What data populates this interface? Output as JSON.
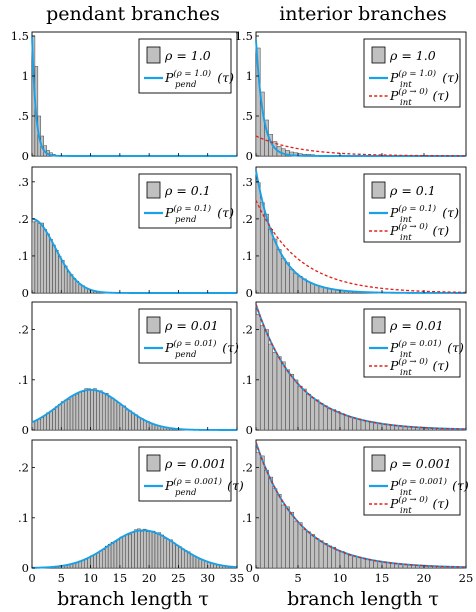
{
  "figure": {
    "col_titles": [
      "pendant branches",
      "interior branches"
    ]
  },
  "colors": {
    "histogram_fill": "#c0c0c0",
    "histogram_edge": "#333333",
    "fitted_curve": "#1aa0e6",
    "limit_curve": "#e0201b"
  },
  "chart_data": [
    {
      "type": "bar",
      "panel": "pendant",
      "rho": "ρ = 1.0",
      "xlim": [
        0,
        35
      ],
      "ylim": [
        0,
        1.55
      ],
      "yticks": [
        0,
        0.5,
        1.0,
        1.5
      ],
      "xticks": [],
      "xlabel": "",
      "legend": {
        "placement": "top-right",
        "hist_label": "ρ = 1.0",
        "curve_label": "P_pend^(ρ = 1.0)(τ)"
      },
      "bin_width": 0.5,
      "bin_values": [
        1.5,
        1.12,
        0.5,
        0.25,
        0.13,
        0.07,
        0.04,
        0.02,
        0.01,
        0.006,
        0.003,
        0.002,
        0.001,
        0.001
      ],
      "curve": {
        "name": "P_pend^(ρ = 1.0)(τ)",
        "family": "exp",
        "a": 1.5,
        "k": 1.5
      }
    },
    {
      "type": "bar",
      "panel": "interior",
      "rho": "ρ = 1.0",
      "xlim": [
        0,
        25
      ],
      "ylim": [
        0,
        1.55
      ],
      "yticks": [
        0,
        0.5,
        1.0,
        1.5
      ],
      "xticks": [],
      "xlabel": "",
      "legend": {
        "placement": "top-right",
        "hist_label": "ρ = 1.0",
        "curve_label": "P_int^(ρ = 1.0)(τ)",
        "limit_label": "P_int^(ρ → 0)(τ)"
      },
      "bin_width": 0.5,
      "bin_values": [
        1.35,
        0.8,
        0.45,
        0.27,
        0.18,
        0.12,
        0.09,
        0.07,
        0.05,
        0.04,
        0.03,
        0.02,
        0.02,
        0.015,
        0.01,
        0.008
      ],
      "curve": {
        "name": "P_int^(ρ = 1.0)(τ)",
        "family": "exp",
        "a": 1.45,
        "k": 1.2
      },
      "limit_curve": {
        "name": "P_int^(ρ → 0)(τ)",
        "family": "exp",
        "a": 0.25,
        "k": 0.2
      }
    },
    {
      "type": "bar",
      "panel": "pendant",
      "rho": "ρ = 0.1",
      "xlim": [
        0,
        35
      ],
      "ylim": [
        0,
        0.34
      ],
      "yticks": [
        0,
        0.1,
        0.2,
        0.3
      ],
      "xticks": [],
      "xlabel": "",
      "legend": {
        "placement": "top-right",
        "hist_label": "ρ = 0.1",
        "curve_label": "P_pend^(ρ = 0.1)(τ)"
      },
      "bin_width": 0.5,
      "curve": {
        "name": "P_pend^(ρ = 0.1)(τ)",
        "family": "half-gauss",
        "a": 0.2,
        "sigma": 4.0
      }
    },
    {
      "type": "bar",
      "panel": "interior",
      "rho": "ρ = 0.1",
      "xlim": [
        0,
        25
      ],
      "ylim": [
        0,
        0.34
      ],
      "yticks": [
        0,
        0.1,
        0.2,
        0.3
      ],
      "xticks": [],
      "xlabel": "",
      "legend": {
        "placement": "top-right",
        "hist_label": "ρ = 0.1",
        "curve_label": "P_int^(ρ = 0.1)(τ)",
        "limit_label": "P_int^(ρ → 0)(τ)"
      },
      "bin_width": 0.5,
      "curve": {
        "name": "P_int^(ρ = 0.1)(τ)",
        "family": "exp",
        "a": 0.33,
        "k": 0.38
      },
      "limit_curve": {
        "name": "P_int^(ρ → 0)(τ)",
        "family": "exp",
        "a": 0.25,
        "k": 0.2
      }
    },
    {
      "type": "bar",
      "panel": "pendant",
      "rho": "ρ = 0.01",
      "xlim": [
        0,
        35
      ],
      "ylim": [
        0,
        0.255
      ],
      "yticks": [
        0,
        0.1,
        0.2
      ],
      "xticks": [],
      "xlabel": "",
      "legend": {
        "placement": "top-right",
        "hist_label": "ρ = 0.01",
        "curve_label": "P_pend^(ρ = 0.01)(τ)"
      },
      "bin_width": 0.5,
      "curve": {
        "name": "P_pend^(ρ = 0.01)(τ)",
        "family": "gauss",
        "a": 0.08,
        "mu": 10,
        "sigma": 5.5
      }
    },
    {
      "type": "bar",
      "panel": "interior",
      "rho": "ρ = 0.01",
      "xlim": [
        0,
        25
      ],
      "ylim": [
        0,
        0.255
      ],
      "yticks": [
        0,
        0.1,
        0.2
      ],
      "xticks": [],
      "xlabel": "",
      "legend": {
        "placement": "top-right",
        "hist_label": "ρ = 0.01",
        "curve_label": "P_int^(ρ = 0.01)(τ)",
        "limit_label": "P_int^(ρ → 0)(τ)"
      },
      "bin_width": 0.5,
      "curve": {
        "name": "P_int^(ρ = 0.01)(τ)",
        "family": "exp",
        "a": 0.25,
        "k": 0.2
      },
      "limit_curve": {
        "name": "P_int^(ρ → 0)(τ)",
        "family": "exp",
        "a": 0.25,
        "k": 0.2
      }
    },
    {
      "type": "bar",
      "panel": "pendant",
      "rho": "ρ = 0.001",
      "xlim": [
        0,
        35
      ],
      "ylim": [
        0,
        0.255
      ],
      "yticks": [
        0,
        0.1,
        0.2
      ],
      "xticks": [
        0,
        5,
        10,
        15,
        20,
        25,
        30,
        35
      ],
      "xlabel": "branch length τ",
      "legend": {
        "placement": "top-right",
        "hist_label": "ρ = 0.001",
        "curve_label": "P_pend^(ρ = 0.001)(τ)"
      },
      "bin_width": 0.5,
      "curve": {
        "name": "P_pend^(ρ = 0.001)(τ)",
        "family": "gauss",
        "a": 0.075,
        "mu": 19,
        "sigma": 5.8
      }
    },
    {
      "type": "bar",
      "panel": "interior",
      "rho": "ρ = 0.001",
      "xlim": [
        0,
        25
      ],
      "ylim": [
        0,
        0.255
      ],
      "yticks": [
        0,
        0.1,
        0.2
      ],
      "xticks": [
        0,
        5,
        10,
        15,
        20,
        25
      ],
      "xlabel": "branch length τ",
      "legend": {
        "placement": "top-right",
        "hist_label": "ρ = 0.001",
        "curve_label": "P_int^(ρ = 0.001)(τ)",
        "limit_label": "P_int^(ρ → 0)(τ)"
      },
      "bin_width": 0.5,
      "curve": {
        "name": "P_int^(ρ = 0.001)(τ)",
        "family": "exp",
        "a": 0.25,
        "k": 0.2
      },
      "limit_curve": {
        "name": "P_int^(ρ → 0)(τ)",
        "family": "exp",
        "a": 0.25,
        "k": 0.2
      }
    }
  ]
}
